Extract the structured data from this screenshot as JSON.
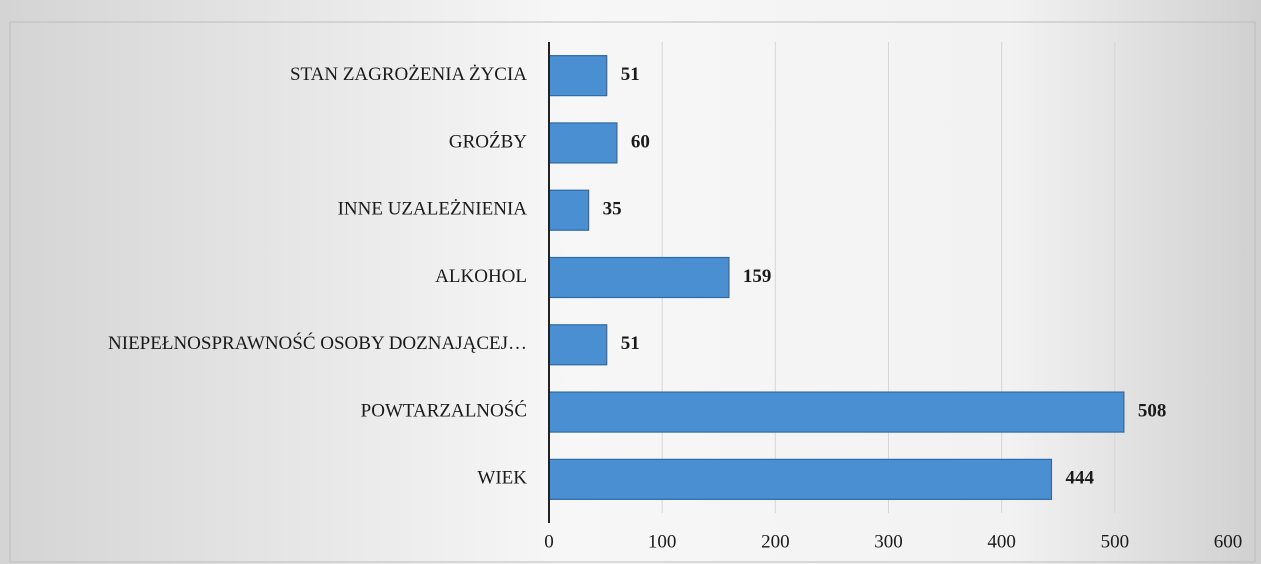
{
  "chart_data": {
    "type": "bar",
    "orientation": "horizontal",
    "categories": [
      "STAN ZAGROŻENIA ŻYCIA",
      "GROŹBY",
      "INNE UZALEŻNIENIA",
      "ALKOHOL",
      "NIEPEŁNOSPRAWNOŚĆ OSOBY DOZNAJĄCEJ…",
      "POWTARZALNOŚĆ",
      "WIEK"
    ],
    "values": [
      51,
      60,
      35,
      159,
      51,
      508,
      444
    ],
    "color": "#4a8fd2",
    "xlim": [
      0,
      600
    ],
    "xticks": [
      0,
      100,
      200,
      300,
      400,
      500,
      600
    ],
    "grid": true
  }
}
